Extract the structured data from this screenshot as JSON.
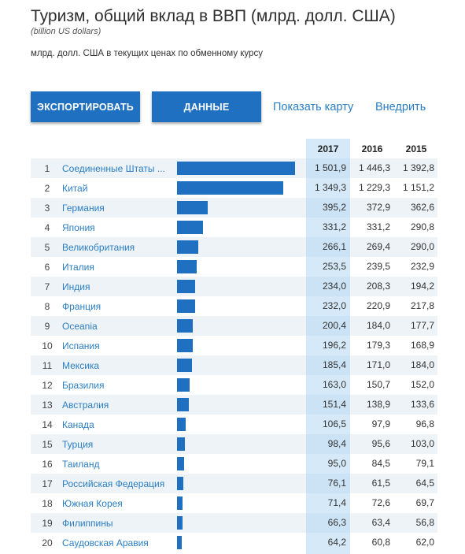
{
  "header": {
    "title": "Туризм, общий вклад в ВВП (млрд. долл. США)",
    "subtitle": "(billion US dollars)",
    "description": "млрд. долл. США в текущих ценах по обменному курсу"
  },
  "toolbar": {
    "export_label": "ЭКСПОРТИРОВАТЬ",
    "data_label": "ДАННЫЕ",
    "map_link": "Показать карту",
    "embed_link": "Внедрить"
  },
  "columns": [
    "2017",
    "2016",
    "2015"
  ],
  "colors": {
    "accent": "#1f70c1",
    "link": "#2a7ec3",
    "highlight": "#d5e9f8"
  },
  "rows": [
    {
      "rank": "1",
      "country": "Соединенные Штаты ...",
      "v2017": "1 501,9",
      "v2016": "1 446,3",
      "v2015": "1 392,8",
      "value": 1501.9
    },
    {
      "rank": "2",
      "country": "Китай",
      "v2017": "1 349,3",
      "v2016": "1 229,3",
      "v2015": "1 151,2",
      "value": 1349.3
    },
    {
      "rank": "3",
      "country": "Германия",
      "v2017": "395,2",
      "v2016": "372,9",
      "v2015": "362,6",
      "value": 395.2
    },
    {
      "rank": "4",
      "country": "Япония",
      "v2017": "331,2",
      "v2016": "331,2",
      "v2015": "290,8",
      "value": 331.2
    },
    {
      "rank": "5",
      "country": "Великобритания",
      "v2017": "266,1",
      "v2016": "269,4",
      "v2015": "290,0",
      "value": 266.1
    },
    {
      "rank": "6",
      "country": "Италия",
      "v2017": "253,5",
      "v2016": "239,5",
      "v2015": "232,9",
      "value": 253.5
    },
    {
      "rank": "7",
      "country": "Индия",
      "v2017": "234,0",
      "v2016": "208,3",
      "v2015": "194,2",
      "value": 234.0
    },
    {
      "rank": "8",
      "country": "Франция",
      "v2017": "232,0",
      "v2016": "220,9",
      "v2015": "217,8",
      "value": 232.0
    },
    {
      "rank": "9",
      "country": "Oceania",
      "v2017": "200,4",
      "v2016": "184,0",
      "v2015": "177,7",
      "value": 200.4
    },
    {
      "rank": "10",
      "country": "Испания",
      "v2017": "196,2",
      "v2016": "179,3",
      "v2015": "168,9",
      "value": 196.2
    },
    {
      "rank": "11",
      "country": "Мексика",
      "v2017": "185,4",
      "v2016": "171,0",
      "v2015": "184,0",
      "value": 185.4
    },
    {
      "rank": "12",
      "country": "Бразилия",
      "v2017": "163,0",
      "v2016": "150,7",
      "v2015": "152,0",
      "value": 163.0
    },
    {
      "rank": "13",
      "country": "Австралия",
      "v2017": "151,4",
      "v2016": "138,9",
      "v2015": "133,6",
      "value": 151.4
    },
    {
      "rank": "14",
      "country": "Канада",
      "v2017": "106,5",
      "v2016": "97,9",
      "v2015": "96,8",
      "value": 106.5
    },
    {
      "rank": "15",
      "country": "Турция",
      "v2017": "98,4",
      "v2016": "95,6",
      "v2015": "103,0",
      "value": 98.4
    },
    {
      "rank": "16",
      "country": "Таиланд",
      "v2017": "95,0",
      "v2016": "84,5",
      "v2015": "79,1",
      "value": 95.0
    },
    {
      "rank": "17",
      "country": "Российская Федерация",
      "v2017": "76,1",
      "v2016": "61,5",
      "v2015": "64,5",
      "value": 76.1
    },
    {
      "rank": "18",
      "country": "Южная Корея",
      "v2017": "71,4",
      "v2016": "72,6",
      "v2015": "69,7",
      "value": 71.4
    },
    {
      "rank": "19",
      "country": "Филиппины",
      "v2017": "66,3",
      "v2016": "63,4",
      "v2015": "56,8",
      "value": 66.3
    },
    {
      "rank": "20",
      "country": "Саудовская Аравия",
      "v2017": "64,2",
      "v2016": "60,8",
      "v2015": "62,0",
      "value": 64.2
    }
  ]
}
